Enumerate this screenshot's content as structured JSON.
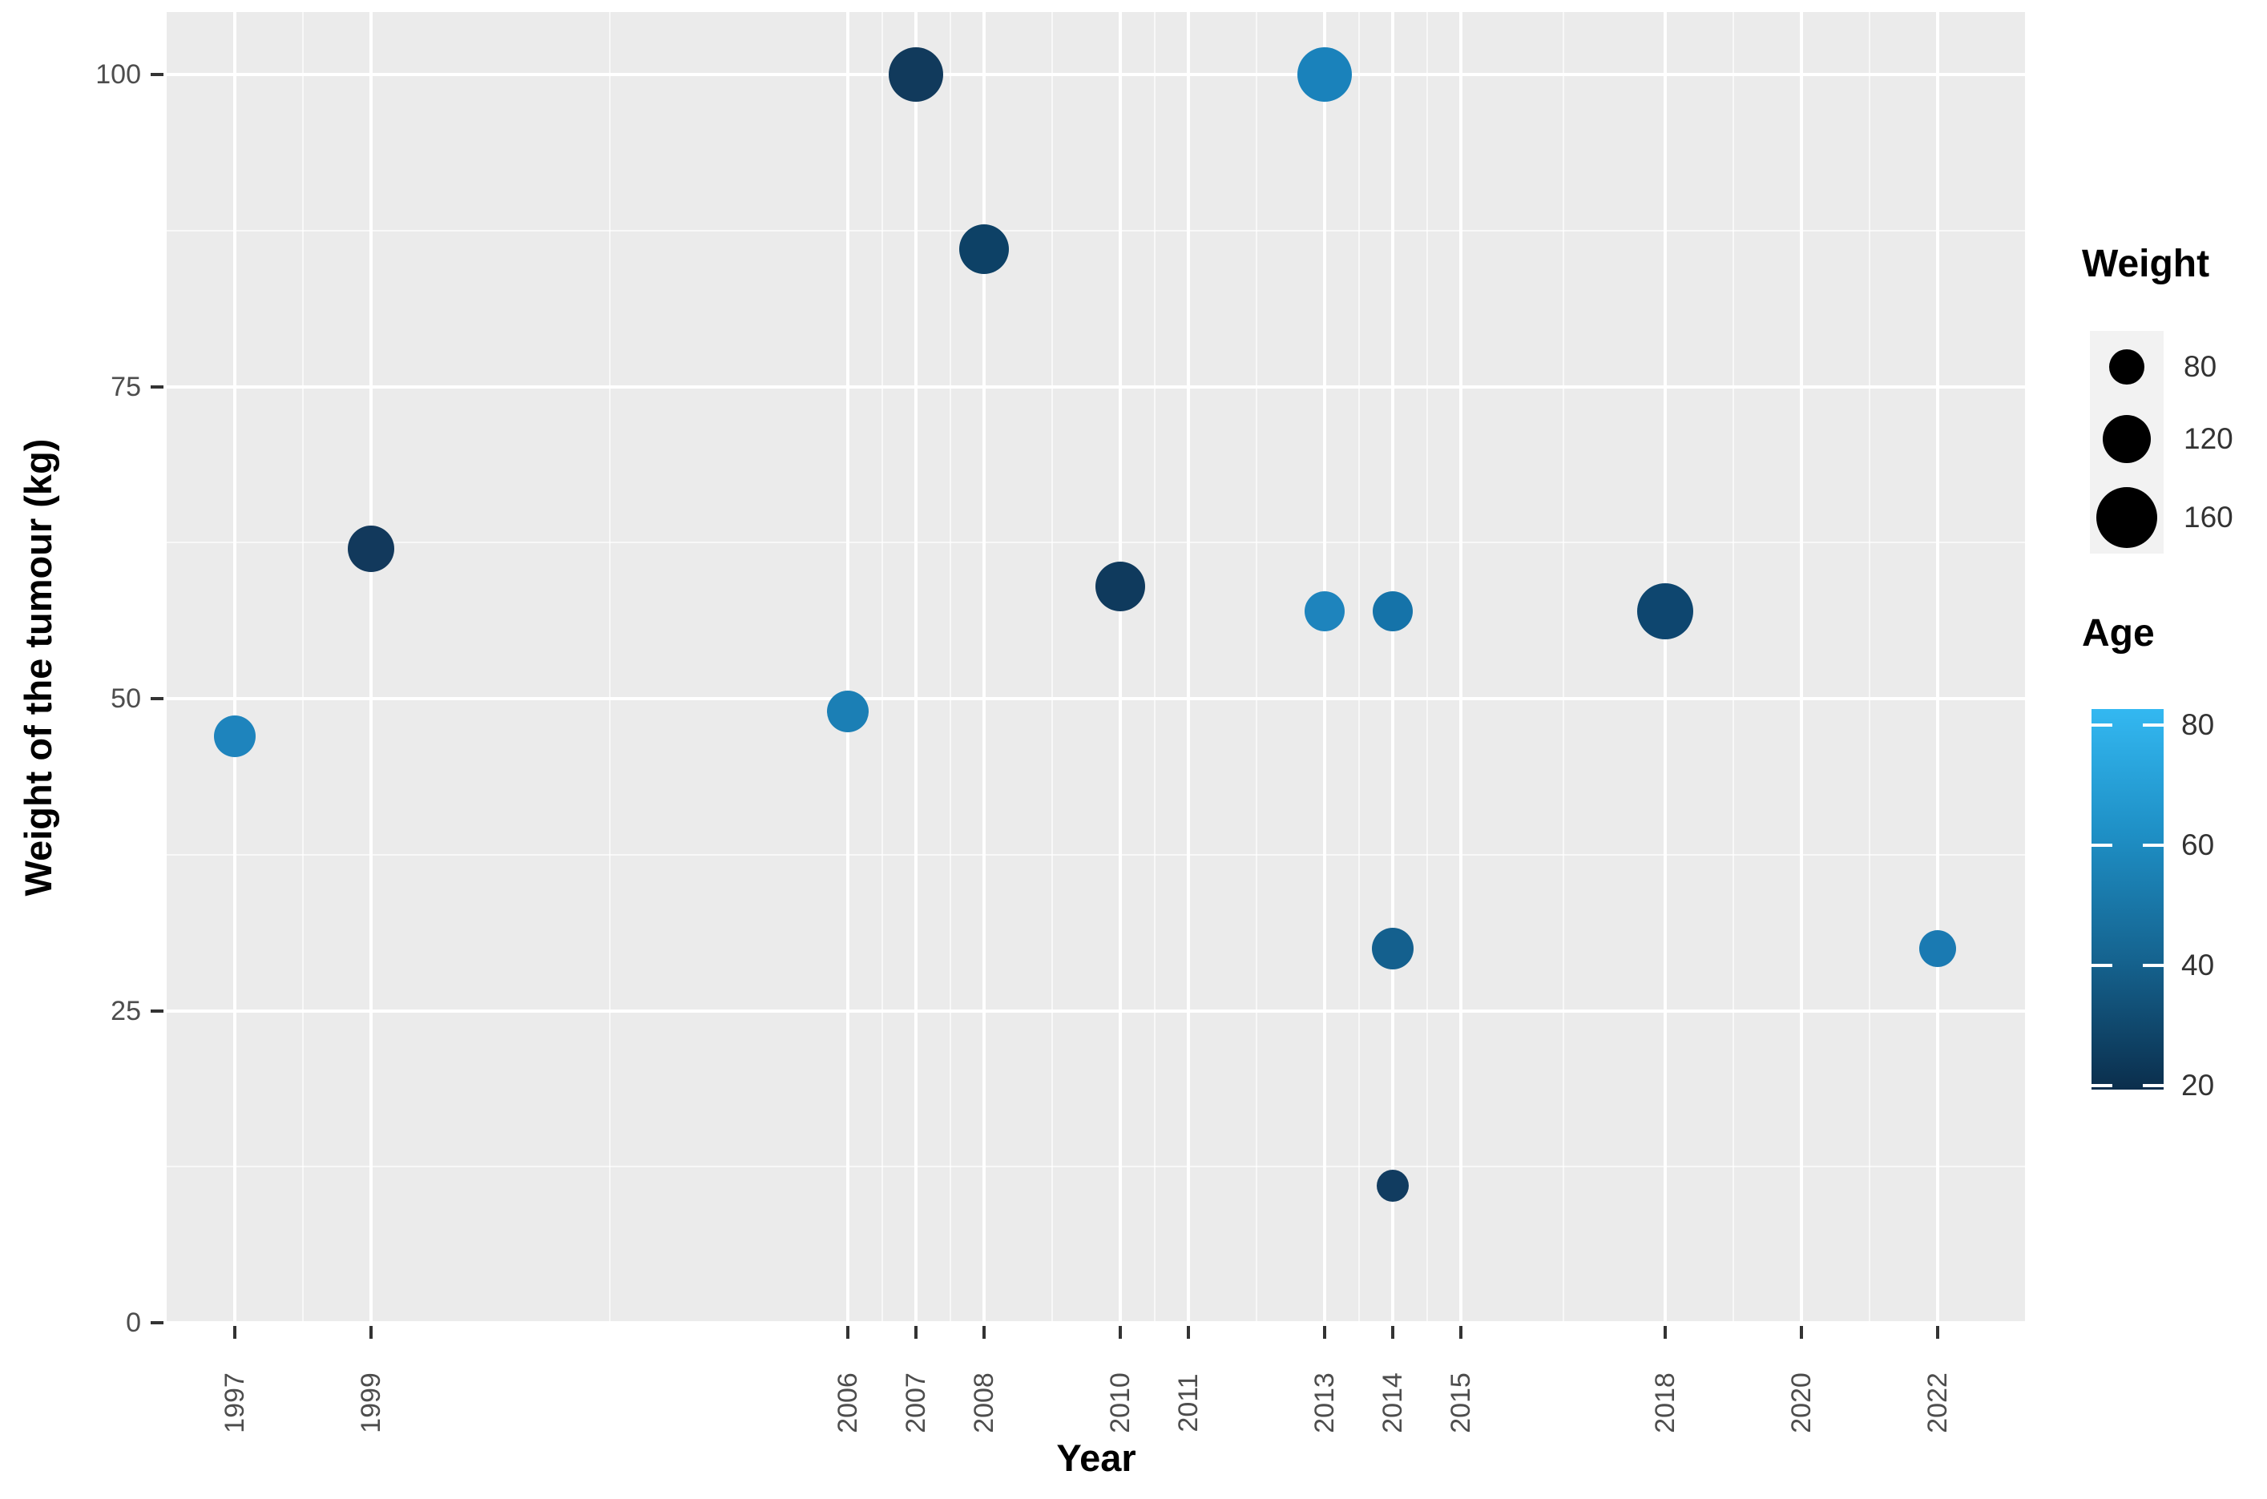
{
  "chart_data": {
    "type": "scatter",
    "title": "",
    "xlabel": "Year",
    "ylabel": "Weight of the tumour (kg)",
    "x_tick_labels": [
      "1997",
      "1999",
      "2006",
      "2007",
      "2008",
      "2010",
      "2011",
      "2013",
      "2014",
      "2015",
      "2018",
      "2020",
      "2022"
    ],
    "x_ticks": [
      1997,
      1999,
      2006,
      2007,
      2008,
      2010,
      2011,
      2013,
      2014,
      2015,
      2018,
      2020,
      2022
    ],
    "x_minor_ticks": [
      1998,
      2002.5,
      2006.5,
      2007.5,
      2009,
      2010.5,
      2012,
      2013.5,
      2014.5,
      2016.5,
      2019,
      2021
    ],
    "y_tick_labels": [
      "0",
      "25",
      "50",
      "75",
      "100"
    ],
    "y_ticks": [
      0,
      25,
      50,
      75,
      100
    ],
    "y_minor_ticks": [
      12.5,
      37.5,
      62.5,
      87.5
    ],
    "xlim": [
      1996.0,
      2023.3
    ],
    "ylim": [
      0,
      105
    ],
    "grid": true,
    "points": [
      {
        "year": 1997,
        "tumour_weight_kg": 47,
        "age_est": 56,
        "patient_weight_est_kg": 100,
        "color": "#1e84bd",
        "radius_px": 26
      },
      {
        "year": 1999,
        "tumour_weight_kg": 62,
        "age_est": 24,
        "patient_weight_est_kg": 115,
        "color": "#12395c",
        "radius_px": 29
      },
      {
        "year": 2006,
        "tumour_weight_kg": 49,
        "age_est": 53,
        "patient_weight_est_kg": 100,
        "color": "#1b7fb5",
        "radius_px": 26
      },
      {
        "year": 2007,
        "tumour_weight_kg": 100,
        "age_est": 24,
        "patient_weight_est_kg": 140,
        "color": "#113a5c",
        "radius_px": 34
      },
      {
        "year": 2008,
        "tumour_weight_kg": 86,
        "age_est": 27,
        "patient_weight_est_kg": 125,
        "color": "#0d4166",
        "radius_px": 31
      },
      {
        "year": 2010,
        "tumour_weight_kg": 59,
        "age_est": 25,
        "patient_weight_est_kg": 125,
        "color": "#0f3a5d",
        "radius_px": 31
      },
      {
        "year": 2013,
        "tumour_weight_kg": 100,
        "age_est": 55,
        "patient_weight_est_kg": 140,
        "color": "#1a82bb",
        "radius_px": 34
      },
      {
        "year": 2013,
        "tumour_weight_kg": 57,
        "age_est": 56,
        "patient_weight_est_kg": 95,
        "color": "#1e84bd",
        "radius_px": 25
      },
      {
        "year": 2014,
        "tumour_weight_kg": 57,
        "age_est": 47,
        "patient_weight_est_kg": 95,
        "color": "#1573a9",
        "radius_px": 25
      },
      {
        "year": 2014,
        "tumour_weight_kg": 30,
        "age_est": 39,
        "patient_weight_est_kg": 100,
        "color": "#14608e",
        "radius_px": 26
      },
      {
        "year": 2014,
        "tumour_weight_kg": 11,
        "age_est": 25,
        "patient_weight_est_kg": 70,
        "color": "#113c60",
        "radius_px": 20
      },
      {
        "year": 2018,
        "tumour_weight_kg": 57,
        "age_est": 29,
        "patient_weight_est_kg": 145,
        "color": "#0e466f",
        "radius_px": 35
      },
      {
        "year": 2022,
        "tumour_weight_kg": 30,
        "age_est": 50,
        "patient_weight_est_kg": 85,
        "color": "#1a7ab2",
        "radius_px": 23
      }
    ],
    "legend": {
      "size": {
        "title": "Weight",
        "entries": [
          {
            "label": "80",
            "radius_px": 22
          },
          {
            "label": "120",
            "radius_px": 30
          },
          {
            "label": "160",
            "radius_px": 38
          }
        ]
      },
      "color": {
        "title": "Age",
        "tick_labels": [
          "80",
          "60",
          "40",
          "20"
        ],
        "gradient_stops": [
          {
            "pos": 0,
            "color": "#33b8f1"
          },
          {
            "pos": 0.33,
            "color": "#1e8fc5"
          },
          {
            "pos": 0.66,
            "color": "#15638f"
          },
          {
            "pos": 1,
            "color": "#0b2e4c"
          }
        ]
      }
    },
    "legend_position": "right"
  },
  "colors": {
    "panel_bg": "#ebebeb",
    "grid": "#ffffff",
    "legend_key_bg": "#f2f2f2",
    "tick_label": "#4d4d4d",
    "axis_title": "#000000",
    "legend_dot": "#000000"
  }
}
